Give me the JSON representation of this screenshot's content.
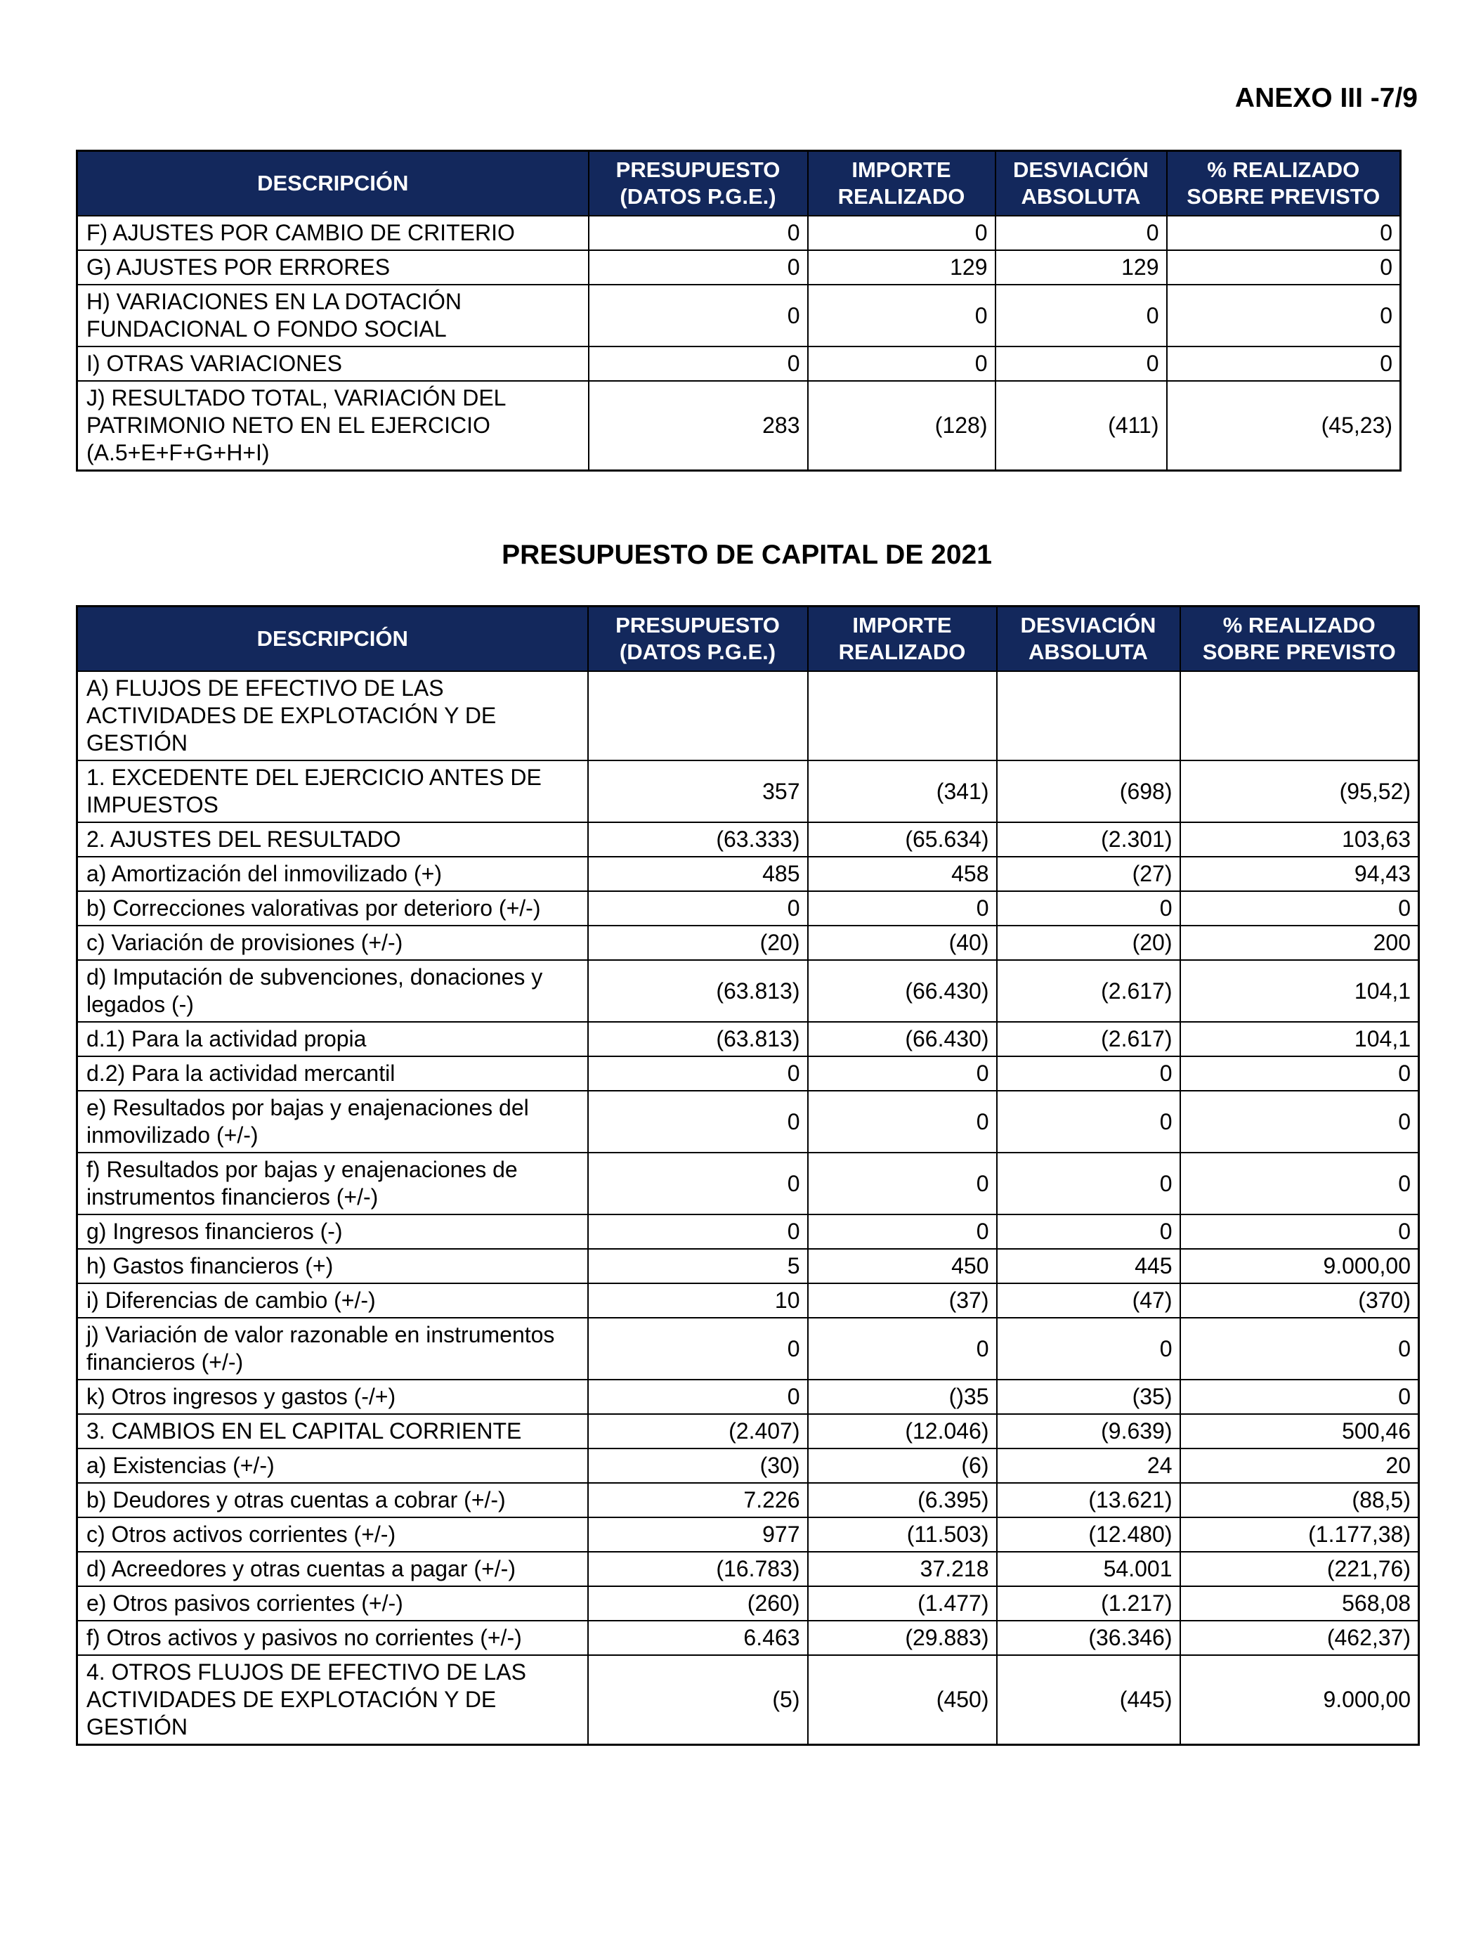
{
  "header": {
    "title": "ANEXO III -7/9"
  },
  "table_1": {
    "columns": [
      "DESCRIPCIÓN",
      "PRESUPUESTO (DATOS P.G.E.)",
      "IMPORTE REALIZADO",
      "DESVIACIÓN ABSOLUTA",
      "% REALIZADO SOBRE PREVISTO"
    ],
    "rows": [
      [
        "F) AJUSTES POR CAMBIO DE CRITERIO",
        "0",
        "0",
        "0",
        "0"
      ],
      [
        "G) AJUSTES POR ERRORES",
        "0",
        "129",
        "129",
        "0"
      ],
      [
        "H) VARIACIONES EN LA DOTACIÓN FUNDACIONAL O FONDO SOCIAL",
        "0",
        "0",
        "0",
        "0"
      ],
      [
        "I) OTRAS VARIACIONES",
        "0",
        "0",
        "0",
        "0"
      ],
      [
        "J) RESULTADO TOTAL, VARIACIÓN DEL PATRIMONIO NETO EN EL EJERCICIO (A.5+E+F+G+H+I)",
        "283",
        "(128)",
        "(411)",
        "(45,23)"
      ]
    ]
  },
  "section_title": "PRESUPUESTO DE CAPITAL DE 2021",
  "table_2": {
    "columns": [
      "DESCRIPCIÓN",
      "PRESUPUESTO (DATOS P.G.E.)",
      "IMPORTE REALIZADO",
      "DESVIACIÓN ABSOLUTA",
      "% REALIZADO SOBRE PREVISTO"
    ],
    "rows": [
      [
        "A) FLUJOS DE EFECTIVO DE LAS ACTIVIDADES DE EXPLOTACIÓN Y DE GESTIÓN",
        null,
        null,
        null,
        null
      ],
      [
        "1. EXCEDENTE DEL EJERCICIO ANTES DE IMPUESTOS",
        "357",
        "(341)",
        "(698)",
        "(95,52)"
      ],
      [
        "2. AJUSTES DEL RESULTADO",
        "(63.333)",
        "(65.634)",
        "(2.301)",
        "103,63"
      ],
      [
        "a) Amortización del inmovilizado (+)",
        "485",
        "458",
        "(27)",
        "94,43"
      ],
      [
        "b) Correcciones valorativas por deterioro (+/-)",
        "0",
        "0",
        "0",
        "0"
      ],
      [
        "c) Variación de provisiones (+/-)",
        "(20)",
        "(40)",
        "(20)",
        "200"
      ],
      [
        "d) Imputación de subvenciones, donaciones y legados (-)",
        "(63.813)",
        "(66.430)",
        "(2.617)",
        "104,1"
      ],
      [
        "d.1) Para la actividad propia",
        "(63.813)",
        "(66.430)",
        "(2.617)",
        "104,1"
      ],
      [
        "d.2) Para la actividad mercantil",
        "0",
        "0",
        "0",
        "0"
      ],
      [
        "e) Resultados por bajas y enajenaciones del inmovilizado (+/-)",
        "0",
        "0",
        "0",
        "0"
      ],
      [
        "f) Resultados por bajas y enajenaciones de instrumentos financieros (+/-)",
        "0",
        "0",
        "0",
        "0"
      ],
      [
        "g) Ingresos financieros (-)",
        "0",
        "0",
        "0",
        "0"
      ],
      [
        "h) Gastos financieros (+)",
        "5",
        "450",
        "445",
        "9.000,00"
      ],
      [
        "i) Diferencias de cambio (+/-)",
        "10",
        "(37)",
        "(47)",
        "(370)"
      ],
      [
        "j) Variación de valor razonable en instrumentos financieros (+/-)",
        "0",
        "0",
        "0",
        "0"
      ],
      [
        "k) Otros ingresos y gastos (-/+)",
        "0",
        "()35",
        "(35)",
        "0"
      ],
      [
        "3. CAMBIOS EN EL CAPITAL CORRIENTE",
        "(2.407)",
        "(12.046)",
        "(9.639)",
        "500,46"
      ],
      [
        "a) Existencias (+/-)",
        "(30)",
        "(6)",
        "24",
        "20"
      ],
      [
        "b) Deudores y otras cuentas a cobrar (+/-)",
        "7.226",
        "(6.395)",
        "(13.621)",
        "(88,5)"
      ],
      [
        "c) Otros activos corrientes (+/-)",
        "977",
        "(11.503)",
        "(12.480)",
        "(1.177,38)"
      ],
      [
        "d) Acreedores y otras cuentas a pagar (+/-)",
        "(16.783)",
        "37.218",
        "54.001",
        "(221,76)"
      ],
      [
        "e) Otros pasivos corrientes (+/-)",
        "(260)",
        "(1.477)",
        "(1.217)",
        "568,08"
      ],
      [
        "f) Otros activos y pasivos no corrientes (+/-)",
        "6.463",
        "(29.883)",
        "(36.346)",
        "(462,37)"
      ],
      [
        "4. OTROS FLUJOS DE EFECTIVO DE LAS ACTIVIDADES DE EXPLOTACIÓN Y DE GESTIÓN",
        "(5)",
        "(450)",
        "(445)",
        "9.000,00"
      ]
    ]
  }
}
